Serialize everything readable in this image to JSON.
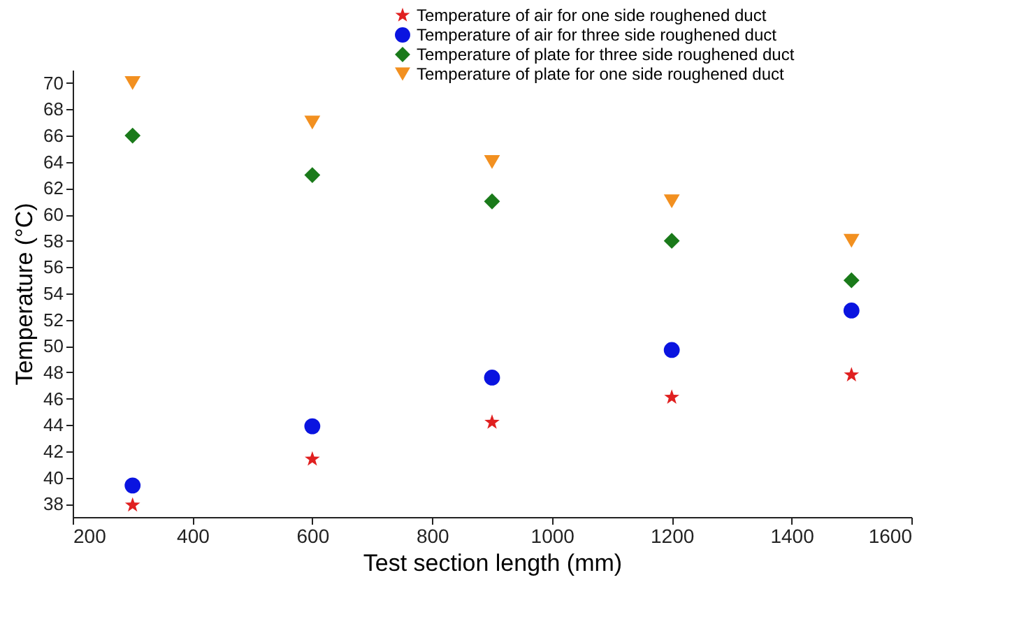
{
  "chart_data": {
    "type": "scatter",
    "xlabel": "Test section length (mm)",
    "ylabel": "Temperature (°C)",
    "x": [
      300,
      600,
      900,
      1200,
      1500
    ],
    "series": [
      {
        "name": "Temperature of air for one side roughened duct",
        "color": "#e02020",
        "marker": "star",
        "values": [
          37.9,
          41.4,
          44.2,
          46.1,
          47.8
        ]
      },
      {
        "name": "Temperature of air for three side roughened duct",
        "color": "#0a14e0",
        "marker": "circle",
        "values": [
          39.4,
          43.9,
          47.6,
          49.7,
          52.7
        ]
      },
      {
        "name": "Temperature of plate for three side roughened duct",
        "color": "#1a7a1a",
        "marker": "diamond",
        "values": [
          66,
          63,
          61,
          58,
          55
        ]
      },
      {
        "name": "Temperature of plate for one side roughened duct",
        "color": "#f29020",
        "marker": "triangle",
        "values": [
          70,
          67,
          64,
          61,
          58
        ]
      }
    ],
    "xlim": [
      200,
      1600
    ],
    "ylim": [
      37,
      71
    ],
    "xticks": [
      200,
      400,
      600,
      800,
      1000,
      1200,
      1400,
      1600
    ],
    "yticks": [
      38,
      40,
      42,
      44,
      46,
      48,
      50,
      52,
      54,
      56,
      58,
      60,
      62,
      64,
      66,
      68,
      70
    ],
    "grid": false,
    "legend": "top right"
  }
}
